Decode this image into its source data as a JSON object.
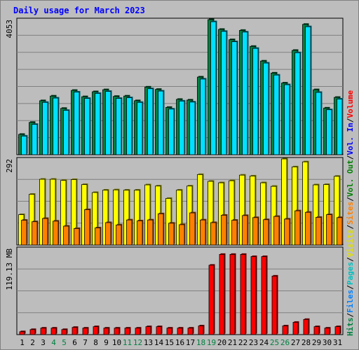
{
  "chart_data": {
    "type": "bar",
    "title": "Daily usage for March 2023",
    "categories": [
      "1",
      "2",
      "3",
      "4",
      "5",
      "6",
      "7",
      "8",
      "9",
      "10",
      "11",
      "12",
      "13",
      "14",
      "15",
      "16",
      "17",
      "18",
      "19",
      "20",
      "21",
      "22",
      "23",
      "24",
      "25",
      "26",
      "27",
      "28",
      "29",
      "30",
      "31"
    ],
    "weekend_categories": [
      "4",
      "5",
      "11",
      "12",
      "18",
      "19",
      "25",
      "26"
    ],
    "panels": [
      {
        "name": "hits-files",
        "ylabel": "4053",
        "ymax": 4053,
        "series": [
          {
            "name": "Hits",
            "color": "#008040",
            "values": [
              610,
              970,
              1620,
              1760,
              1390,
              1930,
              1740,
              1890,
              1950,
              1750,
              1760,
              1620,
              2030,
              1960,
              1420,
              1660,
              1640,
              2330,
              4053,
              3760,
              3450,
              3730,
              3250,
              2810,
              2450,
              2150,
              3130,
              3910,
              1950,
              1400,
              1720
            ]
          },
          {
            "name": "Files",
            "color": "#00e0ff",
            "values": [
              560,
              910,
              1570,
              1700,
              1330,
              1880,
              1690,
              1840,
              1900,
              1690,
              1710,
              1570,
              1980,
              1910,
              1370,
              1610,
              1580,
              2270,
              3990,
              3700,
              3390,
              3680,
              3190,
              2750,
              2390,
              2100,
              3060,
              3840,
              1870,
              1350,
              1670
            ]
          }
        ]
      },
      {
        "name": "pages-visits-sites",
        "ylabel": "292",
        "ymax": 292,
        "series": [
          {
            "name": "Pages",
            "color": "#00c0c0",
            "values": []
          },
          {
            "name": "Visits",
            "color": "#ffff00",
            "values": [
              103,
              172,
              223,
              223,
              219,
              222,
              205,
              178,
              186,
              187,
              186,
              186,
              204,
              200,
              158,
              186,
              200,
              239,
              216,
              211,
              218,
              237,
              234,
              211,
              199,
              292,
              265,
              282,
              204,
              205,
              233
            ]
          },
          {
            "name": "Sites",
            "color": "#ff8000",
            "values": [
              84,
              79,
              90,
              81,
              64,
              56,
              120,
              58,
              76,
              68,
              85,
              82,
              85,
              106,
              74,
              69,
              109,
              85,
              76,
              101,
              84,
              100,
              93,
              86,
              97,
              88,
              116,
              111,
              94,
              103,
              93
            ]
          }
        ]
      },
      {
        "name": "volume",
        "ylabel": "119.13 MB",
        "ymax": 119.13,
        "series": [
          {
            "name": "Vol. Out",
            "color": "#008000",
            "values": []
          },
          {
            "name": "Vol. In",
            "color": "#0000ff",
            "values": []
          },
          {
            "name": "Volume",
            "color": "#ff0000",
            "values": [
              4,
              7,
              9,
              9,
              7,
              10,
              9,
              11,
              9,
              9,
              9,
              9,
              11,
              11,
              9,
              9,
              9,
              12,
              96,
              111,
              111,
              111,
              108,
              108,
              81,
              12,
              17,
              21,
              11,
              9,
              11
            ]
          }
        ]
      }
    ],
    "right_legend": [
      {
        "text": "Hits",
        "color": "#008040"
      },
      {
        "text": "/",
        "color": "#000000"
      },
      {
        "text": "Files",
        "color": "#0080ff"
      },
      {
        "text": "/",
        "color": "#000000"
      },
      {
        "text": "Pages",
        "color": "#00c0c0"
      },
      {
        "text": "/",
        "color": "#000000"
      },
      {
        "text": "Visits",
        "color": "#e0e000"
      },
      {
        "text": "/",
        "color": "#000000"
      },
      {
        "text": "Sites",
        "color": "#ff8000"
      },
      {
        "text": "/",
        "color": "#000000"
      },
      {
        "text": "Vol. Out",
        "color": "#008000"
      },
      {
        "text": "/",
        "color": "#000000"
      },
      {
        "text": "Vol. In",
        "color": "#0000ff"
      },
      {
        "text": "/",
        "color": "#000000"
      },
      {
        "text": "Volume",
        "color": "#ff0000"
      }
    ],
    "colors": {
      "background": "#bdbdbd",
      "title": "#0000ff",
      "weekday_label": "#000000",
      "weekend_label": "#008040",
      "grid": "#808080"
    },
    "grid": true
  }
}
